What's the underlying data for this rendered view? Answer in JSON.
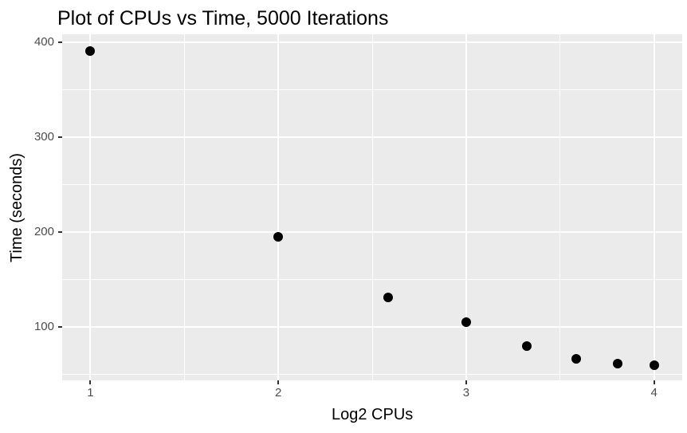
{
  "chart_data": {
    "type": "scatter",
    "title": "Plot of CPUs vs Time, 5000 Iterations",
    "xlabel": "Log2 CPUs",
    "ylabel": "Time (seconds)",
    "points": [
      {
        "x": 1.0,
        "y": 390
      },
      {
        "x": 2.0,
        "y": 195
      },
      {
        "x": 2.585,
        "y": 131
      },
      {
        "x": 3.0,
        "y": 105
      },
      {
        "x": 3.322,
        "y": 80
      },
      {
        "x": 3.585,
        "y": 67
      },
      {
        "x": 3.807,
        "y": 62
      },
      {
        "x": 4.0,
        "y": 60
      }
    ],
    "x_ticks": [
      1,
      2,
      3,
      4
    ],
    "y_ticks": [
      100,
      200,
      300,
      400
    ],
    "x_minor_ticks": [
      1.5,
      2.5,
      3.5
    ],
    "y_minor_ticks": [
      50,
      150,
      250,
      350
    ],
    "xlim": [
      0.85,
      4.15
    ],
    "ylim": [
      44,
      408
    ],
    "grid": "on",
    "legend": "none",
    "colors": {
      "panel_background": "#EBEBEB",
      "gridline": "#FFFFFF",
      "point": "#000000",
      "tick_label": "#4D4D4D",
      "tick_mark": "#333333",
      "axis_title": "#000000",
      "title": "#000000",
      "figure_background": "#FFFFFF"
    }
  }
}
